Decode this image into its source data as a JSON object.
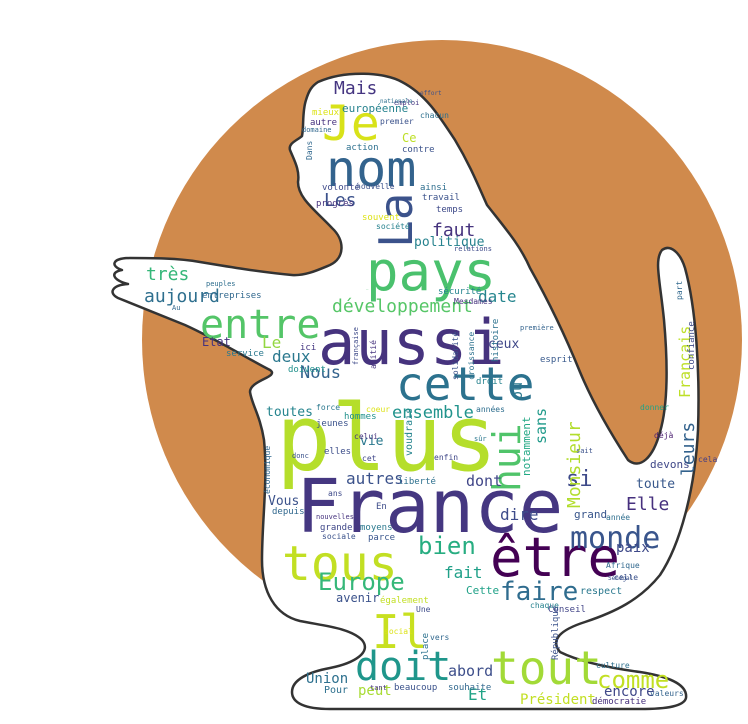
{
  "palette": {
    "background": "#ffffff",
    "circle": "#D08A4C",
    "silhouette_fill": "#ffffff",
    "silhouette_stroke": "#333333"
  },
  "words": [
    {
      "text": "France",
      "color": "#453781"
    },
    {
      "text": "plus",
      "color": "#B5DE2B"
    },
    {
      "text": "aussi",
      "color": "#46337E"
    },
    {
      "text": "pays",
      "color": "#4AC16D"
    },
    {
      "text": "cette",
      "color": "#2C728E"
    },
    {
      "text": "nom",
      "color": "#33638D"
    },
    {
      "text": "être",
      "color": "#440154"
    },
    {
      "text": "tous",
      "color": "#C2DF23"
    },
    {
      "text": "tout",
      "color": "#A2DA37"
    },
    {
      "text": "Je",
      "color": "#D8E219"
    },
    {
      "text": "La",
      "color": "#3B528B"
    },
    {
      "text": "doit",
      "color": "#1F968B"
    },
    {
      "text": "Il",
      "color": "#C8E020"
    },
    {
      "text": "monde",
      "color": "#39558C"
    },
    {
      "text": "entre",
      "color": "#54C568"
    },
    {
      "text": "hui",
      "color": "#50C46A"
    },
    {
      "text": "faire",
      "color": "#2F6C8E"
    },
    {
      "text": "bien",
      "color": "#27AD81"
    },
    {
      "text": "Europe",
      "color": "#35B779"
    },
    {
      "text": "comme",
      "color": "#C2DF23"
    },
    {
      "text": "développement",
      "color": "#56C667"
    },
    {
      "text": "ensemble",
      "color": "#20938C"
    },
    {
      "text": "pays",
      "color": "#4AC16D"
    },
    {
      "text": "date",
      "color": "#25858E"
    },
    {
      "text": "faut",
      "color": "#46337E"
    },
    {
      "text": "Les",
      "color": "#3B518B"
    },
    {
      "text": "Mais",
      "color": "#453581"
    },
    {
      "text": "très",
      "color": "#35B779"
    },
    {
      "text": "aujourd",
      "color": "#2E6F8E"
    },
    {
      "text": "Nous",
      "color": "#33638D"
    },
    {
      "text": "deux",
      "color": "#2A788E"
    },
    {
      "text": "Le",
      "color": "#93D741"
    },
    {
      "text": "politique",
      "color": "#26828E"
    },
    {
      "text": "leurs",
      "color": "#33628D"
    },
    {
      "text": "si",
      "color": "#3E4A89"
    },
    {
      "text": "Elle",
      "color": "#46307E"
    },
    {
      "text": "Monsieur",
      "color": "#B2DD2D"
    },
    {
      "text": "sans",
      "color": "#1F9A8A"
    },
    {
      "text": "Français",
      "color": "#BDDF26"
    },
    {
      "text": "où",
      "color": "#2A788E"
    },
    {
      "text": "dont",
      "color": "#404688"
    },
    {
      "text": "dire",
      "color": "#3E4C8A"
    },
    {
      "text": "autres",
      "color": "#3B528B"
    },
    {
      "text": "fait",
      "color": "#1FA088"
    },
    {
      "text": "Et",
      "color": "#20A386"
    },
    {
      "text": "abord",
      "color": "#3D4E8A"
    },
    {
      "text": "Union",
      "color": "#2D708E"
    },
    {
      "text": "peut",
      "color": "#A8DB34"
    },
    {
      "text": "encore",
      "color": "#3F4788"
    },
    {
      "text": "Président",
      "color": "#C2DF23"
    },
    {
      "text": "paix",
      "color": "#3E4989"
    },
    {
      "text": "toute",
      "color": "#38588C"
    },
    {
      "text": "Vous",
      "color": "#3B528B"
    },
    {
      "text": "toutes",
      "color": "#25848E"
    },
    {
      "text": "vie",
      "color": "#2A788E"
    },
    {
      "text": "ceux",
      "color": "#3F4788"
    },
    {
      "text": "avenir",
      "color": "#3B528B"
    },
    {
      "text": "Etat",
      "color": "#46337E"
    },
    {
      "text": "Ce",
      "color": "#BDDF26"
    },
    {
      "text": "européenne",
      "color": "#26828E"
    },
    {
      "text": "grand",
      "color": "#39568C"
    },
    {
      "text": "Cette",
      "color": "#1FA187"
    },
    {
      "text": "respect",
      "color": "#2A788E"
    },
    {
      "text": "Conseil",
      "color": "#414487"
    },
    {
      "text": "devons",
      "color": "#3F4788"
    },
    {
      "text": "notamment",
      "color": "#22A884"
    },
    {
      "text": "ici",
      "color": "#453781"
    },
    {
      "text": "service",
      "color": "#2A788E"
    },
    {
      "text": "doivent",
      "color": "#21918C"
    },
    {
      "text": "peuples",
      "color": "#2E6E8E"
    },
    {
      "text": "entreprises",
      "color": "#31688E"
    },
    {
      "text": "sécurité",
      "color": "#25848E"
    },
    {
      "text": "histoire",
      "color": "#2C728E"
    },
    {
      "text": "première",
      "color": "#33638D"
    },
    {
      "text": "esprit",
      "color": "#38598C"
    },
    {
      "text": "confiance",
      "color": "#3E4A89"
    },
    {
      "text": "cela",
      "color": "#433D84"
    },
    {
      "text": "donner",
      "color": "#20A386"
    },
    {
      "text": "déjà",
      "color": "#481C6E"
    },
    {
      "text": "année",
      "color": "#2E6E8E"
    },
    {
      "text": "celle",
      "color": "#3B528B"
    },
    {
      "text": "Afrique",
      "color": "#31688E"
    },
    {
      "text": "démocratie",
      "color": "#46307E"
    },
    {
      "text": "valeurs",
      "color": "#33638D"
    },
    {
      "text": "culture",
      "color": "#2D708E"
    },
    {
      "text": "beaucoup",
      "color": "#3B528B"
    },
    {
      "text": "tant",
      "color": "#46327E"
    },
    {
      "text": "Pour",
      "color": "#2D708E"
    },
    {
      "text": "souhaite",
      "color": "#31688E"
    },
    {
      "text": "chaque",
      "color": "#26828E"
    },
    {
      "text": "République",
      "color": "#3B528B"
    },
    {
      "text": "vers",
      "color": "#31688E"
    },
    {
      "text": "place",
      "color": "#2C728E"
    },
    {
      "text": "également",
      "color": "#C2DF23"
    },
    {
      "text": "Une",
      "color": "#3E4C8A"
    },
    {
      "text": "social",
      "color": "#DDE318"
    },
    {
      "text": "moyens",
      "color": "#2A788E"
    },
    {
      "text": "parce",
      "color": "#39558C"
    },
    {
      "text": "grande",
      "color": "#3F4788"
    },
    {
      "text": "sociale",
      "color": "#3B528B"
    },
    {
      "text": "depuis",
      "color": "#31688E"
    },
    {
      "text": "ans",
      "color": "#3E4A89"
    },
    {
      "text": "nouvelles",
      "color": "#46337E"
    },
    {
      "text": "liberté",
      "color": "#2D708E"
    },
    {
      "text": "enfin",
      "color": "#3F4788"
    },
    {
      "text": "voudrais",
      "color": "#25848E"
    },
    {
      "text": "jeunes",
      "color": "#3B528B"
    },
    {
      "text": "elles",
      "color": "#3D4E8A"
    },
    {
      "text": "force",
      "color": "#2A788E"
    },
    {
      "text": "hommes",
      "color": "#21918C"
    },
    {
      "text": "coeur",
      "color": "#DDE318"
    },
    {
      "text": "années",
      "color": "#2E6E8E"
    },
    {
      "text": "droit",
      "color": "#26828E"
    },
    {
      "text": "amitié",
      "color": "#46337E"
    },
    {
      "text": "croissance",
      "color": "#2C728E"
    },
    {
      "text": "solidarité",
      "color": "#3B528B"
    },
    {
      "text": "française",
      "color": "#3E4A89"
    },
    {
      "text": "économique",
      "color": "#31688E"
    },
    {
      "text": "donc",
      "color": "#3B528B"
    },
    {
      "text": "action",
      "color": "#2D708E"
    },
    {
      "text": "contre",
      "color": "#3B528B"
    },
    {
      "text": "domaine",
      "color": "#31688E"
    },
    {
      "text": "autre",
      "color": "#46327E"
    },
    {
      "text": "premier",
      "color": "#3B528B"
    },
    {
      "text": "chacun",
      "color": "#2D708E"
    },
    {
      "text": "emploi",
      "color": "#453781"
    },
    {
      "text": "mieux",
      "color": "#DDE318"
    },
    {
      "text": "Dans",
      "color": "#31688E"
    },
    {
      "text": "volonté",
      "color": "#3E4A89"
    },
    {
      "text": "nouvelle",
      "color": "#3B528B"
    },
    {
      "text": "progrès",
      "color": "#46337E"
    },
    {
      "text": "ainsi",
      "color": "#2E6E8E"
    },
    {
      "text": "travail",
      "color": "#3B528B"
    },
    {
      "text": "temps",
      "color": "#3E4A89"
    },
    {
      "text": "société",
      "color": "#26828E"
    },
    {
      "text": "souvent",
      "color": "#DDE318"
    },
    {
      "text": "sait",
      "color": "#3B528B"
    },
    {
      "text": "Sénégal",
      "color": "#3B528B"
    },
    {
      "text": "part",
      "color": "#31688E"
    },
    {
      "text": "cet",
      "color": "#3F4788"
    },
    {
      "text": "celui",
      "color": "#46337E"
    },
    {
      "text": "sûr",
      "color": "#2A788E"
    },
    {
      "text": "En",
      "color": "#3E4C8A"
    },
    {
      "text": "Au",
      "color": "#31688E"
    },
    {
      "text": "Mesdames",
      "color": "#46337E"
    },
    {
      "text": "nationale",
      "color": "#2D708E"
    },
    {
      "text": "effort",
      "color": "#3B528B"
    },
    {
      "text": "relations",
      "color": "#3E4A89"
    }
  ]
}
